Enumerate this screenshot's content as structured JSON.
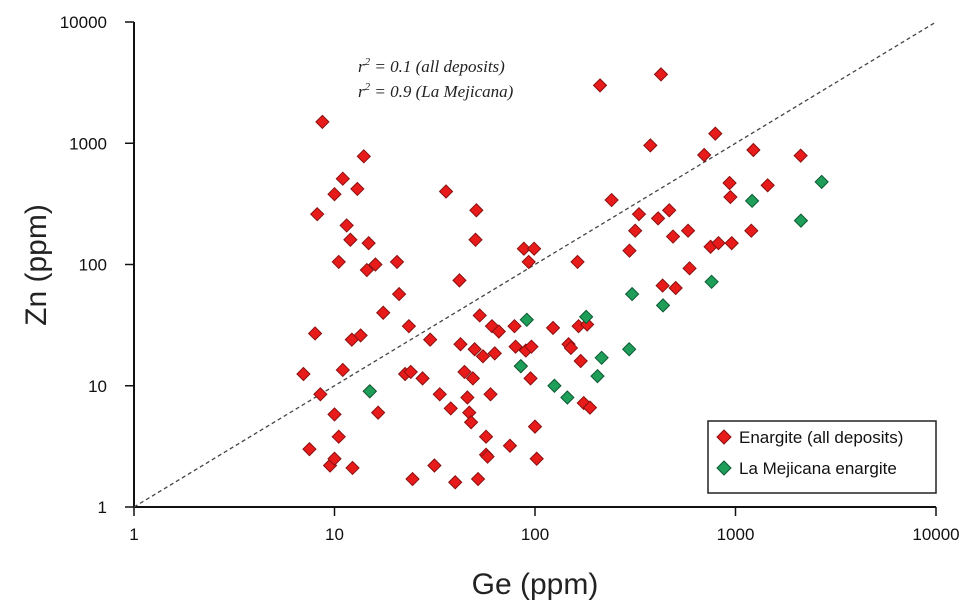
{
  "chart_data": {
    "type": "scatter",
    "xscale": "log",
    "yscale": "log",
    "xlim": [
      1,
      10000
    ],
    "ylim": [
      1,
      10000
    ],
    "xlabel": "Ge (ppm)",
    "ylabel": "Zn (ppm)",
    "xticks": [
      "1",
      "10",
      "100",
      "1000",
      "10000"
    ],
    "yticks": [
      "1",
      "10",
      "100",
      "1000",
      "10000"
    ],
    "grid": false,
    "legend_position": "bottom-right",
    "reference_line": {
      "style": "dashed",
      "from": [
        1,
        1
      ],
      "to": [
        10000,
        10000
      ]
    },
    "annotations": [
      {
        "r": "r",
        "sup": "2",
        "rest": " = 0.1 (all deposits)"
      },
      {
        "r": "r",
        "sup": "2",
        "rest": " = 0.9 (La Mejicana)"
      }
    ],
    "series": [
      {
        "name": "Enargite (all deposits)",
        "color": "#e81b1b",
        "stroke": "#8a1010",
        "marker": "diamond",
        "points": [
          [
            7,
            12.5
          ],
          [
            7.5,
            3
          ],
          [
            8,
            27
          ],
          [
            8.2,
            260
          ],
          [
            8.5,
            8.5
          ],
          [
            8.7,
            1500
          ],
          [
            9.5,
            2.2
          ],
          [
            10,
            2.5
          ],
          [
            10,
            5.8
          ],
          [
            10,
            380
          ],
          [
            10.5,
            3.8
          ],
          [
            10.5,
            105
          ],
          [
            11,
            13.5
          ],
          [
            11,
            510
          ],
          [
            11.5,
            210
          ],
          [
            12,
            160
          ],
          [
            12.2,
            24
          ],
          [
            12.3,
            2.1
          ],
          [
            13,
            420
          ],
          [
            13.5,
            26
          ],
          [
            14,
            780
          ],
          [
            14.5,
            90
          ],
          [
            14.8,
            150
          ],
          [
            15,
            9
          ],
          [
            16,
            100
          ],
          [
            16.5,
            6
          ],
          [
            17.5,
            40
          ],
          [
            20.5,
            105
          ],
          [
            21,
            57
          ],
          [
            22.5,
            12.5
          ],
          [
            23.5,
            31
          ],
          [
            24,
            13
          ],
          [
            24.5,
            1.7
          ],
          [
            27.5,
            11.5
          ],
          [
            30,
            24
          ],
          [
            31.5,
            2.2
          ],
          [
            33.5,
            8.5
          ],
          [
            36,
            400
          ],
          [
            38,
            6.5
          ],
          [
            40,
            1.6
          ],
          [
            42,
            74
          ],
          [
            42.5,
            22
          ],
          [
            44.5,
            13
          ],
          [
            46,
            8
          ],
          [
            47,
            6
          ],
          [
            48,
            5
          ],
          [
            49,
            11.5
          ],
          [
            50,
            20
          ],
          [
            50.5,
            160
          ],
          [
            51,
            280
          ],
          [
            52,
            1.7
          ],
          [
            53,
            38
          ],
          [
            55,
            17.5
          ],
          [
            57,
            2.7
          ],
          [
            57,
            3.8
          ],
          [
            58,
            2.6
          ],
          [
            60,
            8.5
          ],
          [
            61,
            31
          ],
          [
            63,
            18.5
          ],
          [
            66,
            28
          ],
          [
            75,
            3.2
          ],
          [
            79,
            31
          ],
          [
            80,
            21
          ],
          [
            85,
            14.5
          ],
          [
            88,
            135
          ],
          [
            90,
            19.5
          ],
          [
            93,
            105
          ],
          [
            95,
            11.5
          ],
          [
            96,
            21
          ],
          [
            99,
            135
          ],
          [
            100,
            4.6
          ],
          [
            102,
            2.5
          ],
          [
            123,
            30
          ],
          [
            147,
            22
          ],
          [
            151,
            20.5
          ],
          [
            163,
            105
          ],
          [
            165,
            31
          ],
          [
            169,
            16
          ],
          [
            175,
            7.2
          ],
          [
            182,
            32
          ],
          [
            188,
            6.6
          ],
          [
            211,
            3000
          ],
          [
            241,
            340
          ],
          [
            296,
            130
          ],
          [
            316,
            190
          ],
          [
            330,
            260
          ],
          [
            376,
            960
          ],
          [
            411,
            240
          ],
          [
            425,
            3700
          ],
          [
            433,
            67
          ],
          [
            467,
            280
          ],
          [
            488,
            170
          ],
          [
            503,
            64
          ],
          [
            580,
            190
          ],
          [
            590,
            93
          ],
          [
            698,
            800
          ],
          [
            751,
            140
          ],
          [
            793,
            1200
          ],
          [
            822,
            150
          ],
          [
            934,
            470
          ],
          [
            943,
            360
          ],
          [
            957,
            150
          ],
          [
            1199,
            190
          ],
          [
            1228,
            880
          ],
          [
            1447,
            450
          ],
          [
            2113,
            790
          ]
        ]
      },
      {
        "name": "La Mejicana enargite",
        "color": "#1f9e5a",
        "stroke": "#0c5a32",
        "marker": "diamond",
        "points": [
          [
            15,
            9
          ],
          [
            85,
            14.5
          ],
          [
            91,
            35
          ],
          [
            125,
            10
          ],
          [
            145,
            8
          ],
          [
            180,
            37
          ],
          [
            205,
            12
          ],
          [
            215,
            17
          ],
          [
            295,
            20
          ],
          [
            305,
            57
          ],
          [
            435,
            46
          ],
          [
            760,
            72
          ],
          [
            1210,
            335
          ],
          [
            2120,
            230
          ],
          [
            2690,
            480
          ]
        ]
      }
    ]
  }
}
